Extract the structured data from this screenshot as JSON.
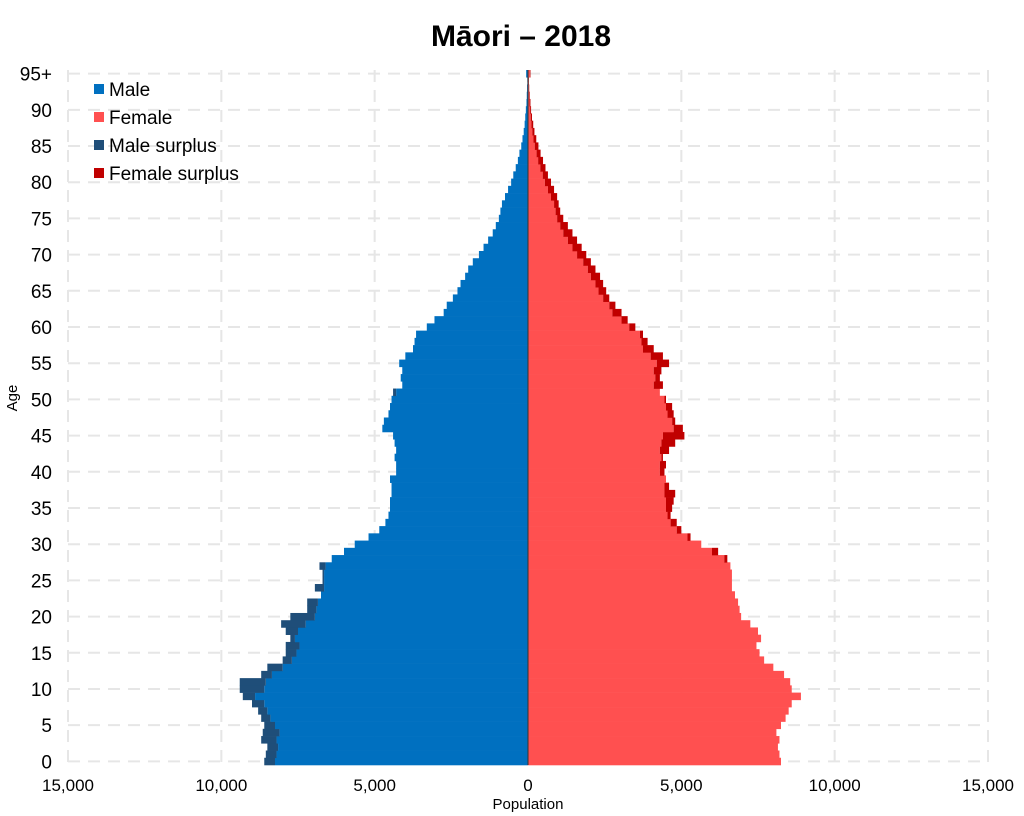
{
  "chart_data": {
    "type": "bar",
    "orientation": "horizontal-population-pyramid",
    "title": "Māori – 2018",
    "xlabel": "Population",
    "ylabel": "Age",
    "xlim": [
      -15000,
      15000
    ],
    "x_ticks": [
      -15000,
      -10000,
      -5000,
      0,
      5000,
      10000,
      15000
    ],
    "x_tick_labels": [
      "15,000",
      "10,000",
      "5,000",
      "0",
      "5,000",
      "10,000",
      "15,000"
    ],
    "y_ticks": [
      0,
      5,
      10,
      15,
      20,
      25,
      30,
      35,
      40,
      45,
      50,
      55,
      60,
      65,
      70,
      75,
      80,
      85,
      90,
      95
    ],
    "y_tick_labels": [
      "0",
      "5",
      "10",
      "15",
      "20",
      "25",
      "30",
      "35",
      "40",
      "45",
      "50",
      "55",
      "60",
      "65",
      "70",
      "75",
      "80",
      "85",
      "90",
      "95+"
    ],
    "grid": true,
    "legend_position": "top-left",
    "categories": [
      "0",
      "1",
      "2",
      "3",
      "4",
      "5",
      "6",
      "7",
      "8",
      "9",
      "10",
      "11",
      "12",
      "13",
      "14",
      "15",
      "16",
      "17",
      "18",
      "19",
      "20",
      "21",
      "22",
      "23",
      "24",
      "25",
      "26",
      "27",
      "28",
      "29",
      "30",
      "31",
      "32",
      "33",
      "34",
      "35",
      "36",
      "37",
      "38",
      "39",
      "40",
      "41",
      "42",
      "43",
      "44",
      "45",
      "46",
      "47",
      "48",
      "49",
      "50",
      "51",
      "52",
      "53",
      "54",
      "55",
      "56",
      "57",
      "58",
      "59",
      "60",
      "61",
      "62",
      "63",
      "64",
      "65",
      "66",
      "67",
      "68",
      "69",
      "70",
      "71",
      "72",
      "73",
      "74",
      "75",
      "76",
      "77",
      "78",
      "79",
      "80",
      "81",
      "82",
      "83",
      "84",
      "85",
      "86",
      "87",
      "88",
      "89",
      "90",
      "91",
      "92",
      "93",
      "94",
      "95+"
    ],
    "series": [
      {
        "name": "Male",
        "color": "#0070c0",
        "values": [
          8600,
          8550,
          8500,
          8700,
          8650,
          8600,
          8700,
          8800,
          9000,
          9300,
          9400,
          9400,
          8700,
          8500,
          8000,
          7900,
          7900,
          7750,
          7900,
          8050,
          7750,
          7200,
          7200,
          6750,
          6950,
          6700,
          6700,
          6800,
          6400,
          6000,
          5650,
          5200,
          4850,
          4650,
          4550,
          4500,
          4500,
          4450,
          4450,
          4500,
          4300,
          4300,
          4350,
          4300,
          4350,
          4400,
          4750,
          4700,
          4550,
          4500,
          4450,
          4400,
          4100,
          4150,
          4100,
          4200,
          4000,
          3750,
          3700,
          3650,
          3300,
          3050,
          2750,
          2650,
          2450,
          2300,
          2200,
          2050,
          1950,
          1800,
          1600,
          1450,
          1300,
          1150,
          1050,
          950,
          900,
          850,
          750,
          650,
          550,
          480,
          400,
          330,
          280,
          220,
          180,
          140,
          110,
          90,
          70,
          50,
          40,
          30,
          20,
          60
        ]
      },
      {
        "name": "Female",
        "color": "#ff5050",
        "values": [
          8250,
          8200,
          8150,
          8200,
          8100,
          8250,
          8400,
          8500,
          8600,
          8900,
          8600,
          8550,
          8350,
          8000,
          7700,
          7550,
          7450,
          7600,
          7500,
          7250,
          6950,
          6900,
          6850,
          6750,
          6650,
          6650,
          6650,
          6600,
          6500,
          6200,
          5650,
          5300,
          5000,
          4850,
          4650,
          4700,
          4750,
          4800,
          4600,
          4500,
          4450,
          4500,
          4400,
          4600,
          4800,
          5100,
          5050,
          4800,
          4750,
          4700,
          4500,
          4300,
          4400,
          4300,
          4350,
          4600,
          4400,
          4100,
          3900,
          3750,
          3500,
          3250,
          3050,
          2850,
          2650,
          2550,
          2450,
          2350,
          2200,
          2050,
          1900,
          1750,
          1600,
          1450,
          1300,
          1150,
          1050,
          1000,
          950,
          850,
          750,
          650,
          570,
          490,
          410,
          340,
          270,
          210,
          170,
          130,
          100,
          80,
          60,
          40,
          30,
          80
        ]
      },
      {
        "name": "Male surplus",
        "color": "#1f4e79"
      },
      {
        "name": "Female surplus",
        "color": "#c00000"
      }
    ]
  }
}
